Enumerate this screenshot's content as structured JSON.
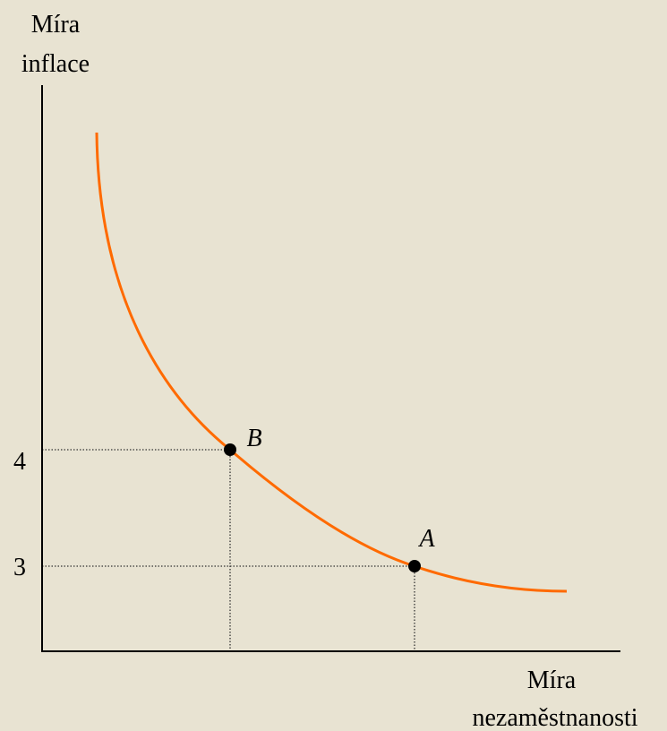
{
  "y_axis": {
    "label": [
      "Míra",
      "inflace"
    ]
  },
  "x_axis": {
    "label": [
      "Míra",
      "nezaměstnanosti"
    ]
  },
  "points": [
    {
      "label": "B",
      "inflation": "4"
    },
    {
      "label": "A",
      "inflation": "3"
    }
  ]
}
